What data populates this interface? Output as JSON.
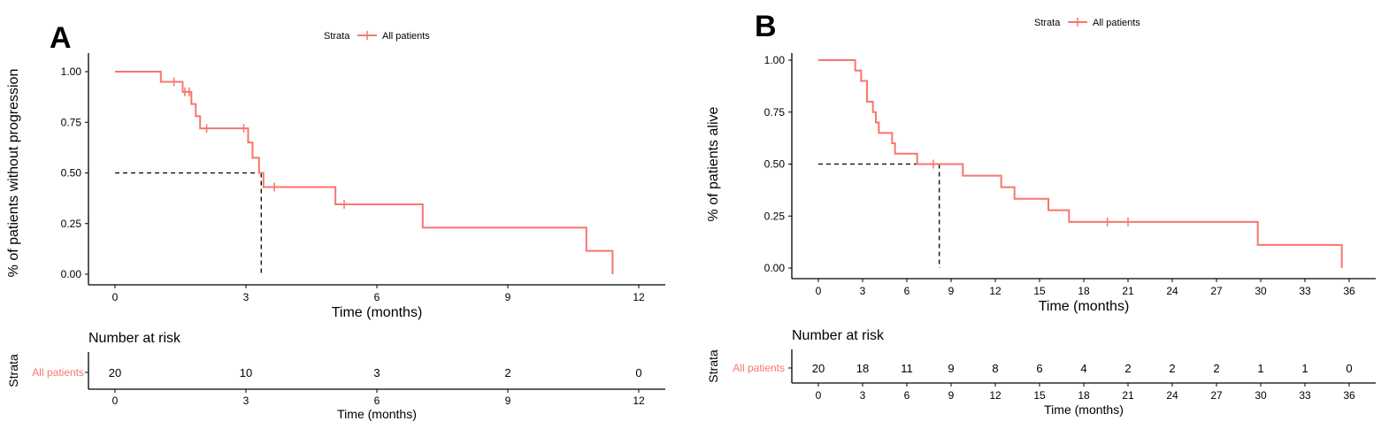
{
  "colors": {
    "strata": "#F8766D",
    "axis": "#000000",
    "median_line": "#000000"
  },
  "chart_data": [
    {
      "type": "line",
      "panel_label": "A",
      "legend": {
        "title": "Strata",
        "entries": [
          "All patients"
        ],
        "placement": "top-center"
      },
      "xlabel": "Time (months)",
      "ylabel": "% of patients without progression",
      "xlim": [
        0,
        12
      ],
      "ylim": [
        0,
        1
      ],
      "xticks": [
        0,
        3,
        6,
        9,
        12
      ],
      "yticks": [
        0,
        0.25,
        0.5,
        0.75,
        1.0
      ],
      "ytick_labels": [
        "0.00",
        "0.25",
        "0.50",
        "0.75",
        "1.00"
      ],
      "median": 3.35,
      "series": [
        {
          "name": "All patients",
          "steps": [
            [
              0,
              1.0
            ],
            [
              1.05,
              0.95
            ],
            [
              1.55,
              0.9
            ],
            [
              1.75,
              0.84
            ],
            [
              1.85,
              0.78
            ],
            [
              1.95,
              0.72
            ],
            [
              3.05,
              0.65
            ],
            [
              3.15,
              0.575
            ],
            [
              3.3,
              0.5
            ],
            [
              3.4,
              0.43
            ],
            [
              5.05,
              0.345
            ],
            [
              7.05,
              0.23
            ],
            [
              10.8,
              0.115
            ],
            [
              11.4,
              0.0
            ]
          ],
          "end": 11.4,
          "censored": [
            [
              1.35,
              0.95
            ],
            [
              1.6,
              0.9
            ],
            [
              1.7,
              0.9
            ],
            [
              2.1,
              0.72
            ],
            [
              2.95,
              0.72
            ],
            [
              3.65,
              0.43
            ],
            [
              5.25,
              0.345
            ]
          ]
        }
      ],
      "risk_table": {
        "title": "Number at risk",
        "ylabel": "Strata",
        "row_label": "All patients",
        "xlabel": "Time (months)",
        "times": [
          0,
          3,
          6,
          9,
          12
        ],
        "counts": [
          "20",
          "10",
          "3",
          "2",
          "0"
        ]
      }
    },
    {
      "type": "line",
      "panel_label": "B",
      "legend": {
        "title": "Strata",
        "entries": [
          "All patients"
        ],
        "placement": "top-center"
      },
      "xlabel": "Time (months)",
      "ylabel": "% of patients alive",
      "xlim": [
        0,
        36
      ],
      "ylim": [
        0,
        1
      ],
      "xticks": [
        0,
        3,
        6,
        9,
        12,
        15,
        18,
        21,
        24,
        27,
        30,
        33,
        36
      ],
      "yticks": [
        0,
        0.25,
        0.5,
        0.75,
        1.0
      ],
      "ytick_labels": [
        "0.00",
        "0.25",
        "0.50",
        "0.75",
        "1.00"
      ],
      "median": 8.2,
      "series": [
        {
          "name": "All patients",
          "steps": [
            [
              0,
              1.0
            ],
            [
              2.5,
              0.95
            ],
            [
              2.9,
              0.9
            ],
            [
              3.3,
              0.8
            ],
            [
              3.7,
              0.75
            ],
            [
              3.9,
              0.7
            ],
            [
              4.1,
              0.65
            ],
            [
              5.0,
              0.6
            ],
            [
              5.2,
              0.55
            ],
            [
              6.7,
              0.5
            ],
            [
              9.8,
              0.444
            ],
            [
              12.4,
              0.389
            ],
            [
              13.3,
              0.333
            ],
            [
              15.6,
              0.278
            ],
            [
              17.0,
              0.222
            ],
            [
              29.8,
              0.111
            ],
            [
              35.5,
              0.0
            ]
          ],
          "end": 35.5,
          "censored": [
            [
              7.8,
              0.5
            ],
            [
              19.6,
              0.222
            ],
            [
              21.0,
              0.222
            ]
          ]
        }
      ],
      "risk_table": {
        "title": "Number at risk",
        "ylabel": "Strata",
        "row_label": "All patients",
        "xlabel": "Time (months)",
        "times": [
          0,
          3,
          6,
          9,
          12,
          15,
          18,
          21,
          24,
          27,
          30,
          33,
          36
        ],
        "counts": [
          "20",
          "18",
          "11",
          "9",
          "8",
          "6",
          "4",
          "2",
          "2",
          "2",
          "1",
          "1",
          "0"
        ]
      }
    }
  ]
}
